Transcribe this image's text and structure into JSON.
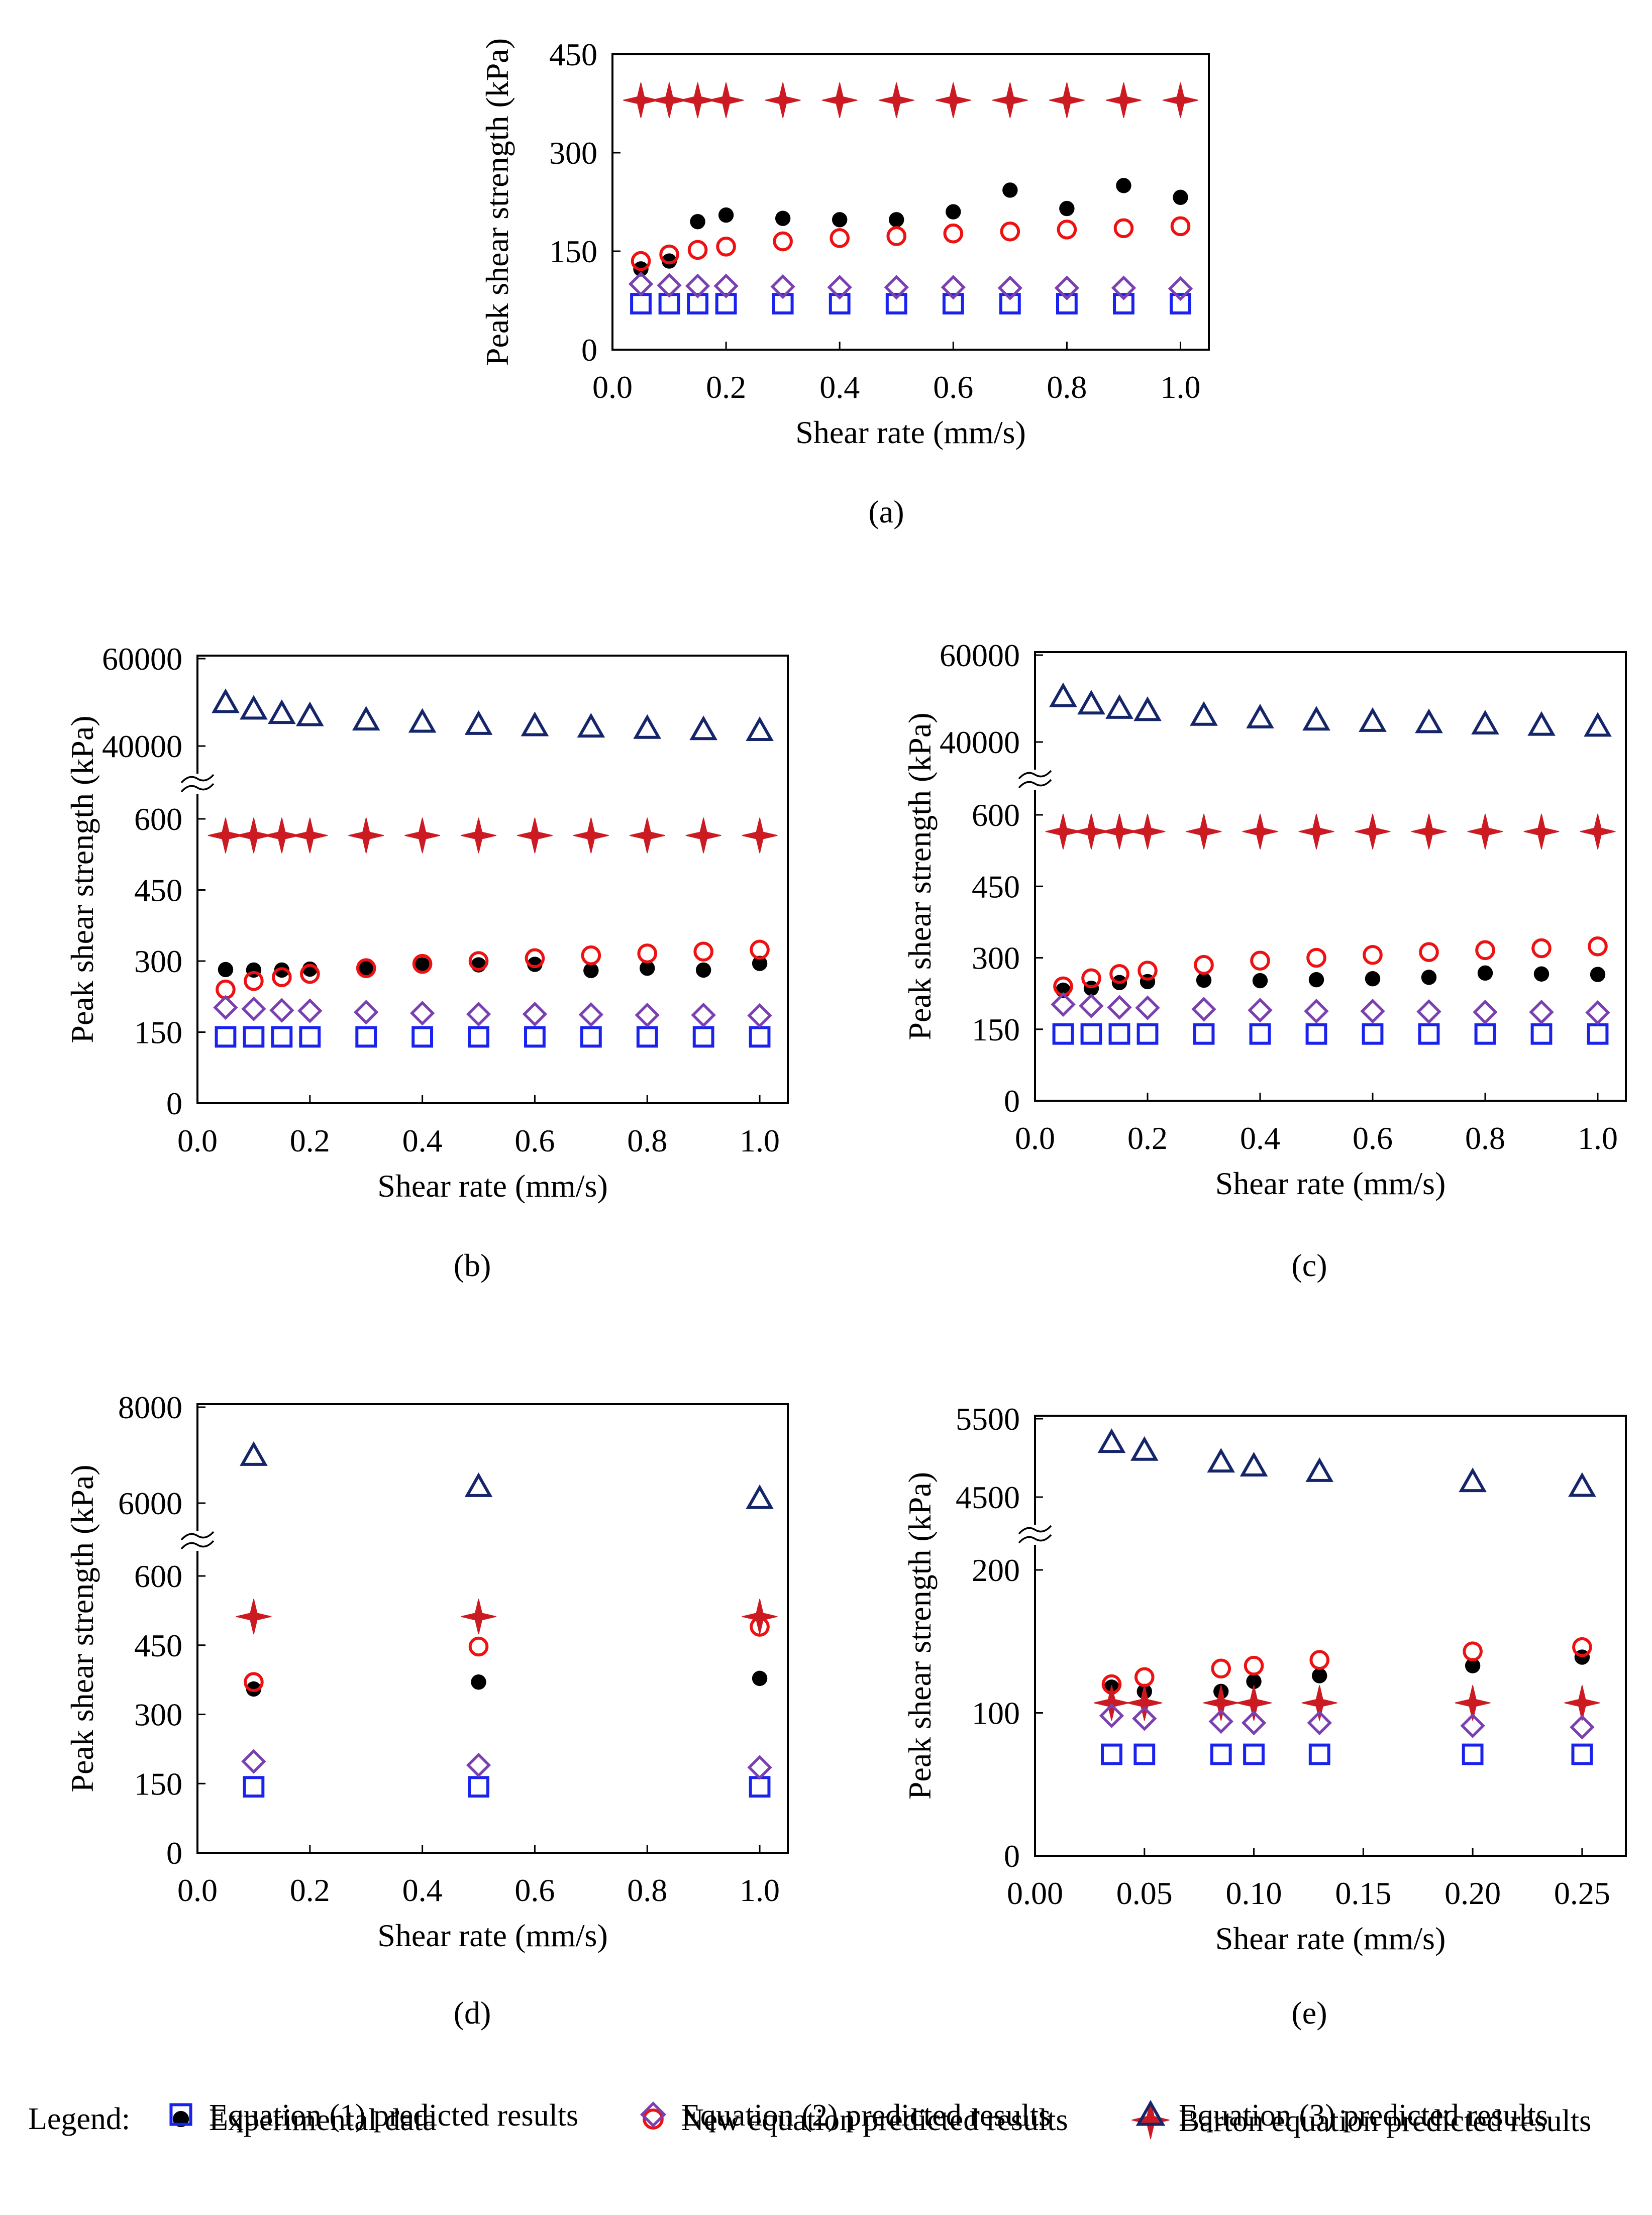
{
  "colors": {
    "experimental": "#000000",
    "new_equation": "#ee1111",
    "barton": "#cc1a22",
    "eq1": "#1a22ee",
    "eq2": "#7a3fb0",
    "eq3": "#15256a"
  },
  "legend": {
    "title": "Legend:",
    "items": [
      {
        "key": "experimental",
        "marker": "filled-circle",
        "label": "Experimental data"
      },
      {
        "key": "new_equation",
        "marker": "open-circle",
        "label": "New equation predicted results"
      },
      {
        "key": "barton",
        "marker": "four-point-star",
        "label": "Barton equation predicted results"
      },
      {
        "key": "eq1",
        "marker": "open-square",
        "label": "Equation (1) predicted results"
      },
      {
        "key": "eq2",
        "marker": "open-diamond",
        "label": "Equation (2) predicted results"
      },
      {
        "key": "eq3",
        "marker": "open-triangle",
        "label": "Equation (3) predicted results"
      }
    ]
  },
  "chart_data": [
    {
      "panel": "(a)",
      "type": "scatter",
      "xlabel": "Shear rate (mm/s)",
      "ylabel": "Peak shear strength (kPa)",
      "xlim": [
        0,
        1.05
      ],
      "xticks": [
        "0.0",
        "0.2",
        "0.4",
        "0.6",
        "0.8",
        "1.0"
      ],
      "xtick_values": [
        0,
        0.2,
        0.4,
        0.6,
        0.8,
        1.0
      ],
      "ylim": [
        0,
        450
      ],
      "yticks": [
        "0",
        "150",
        "300",
        "450"
      ],
      "ytick_values": [
        0,
        150,
        300,
        450
      ],
      "axis_break": false,
      "x": [
        0.05,
        0.1,
        0.15,
        0.2,
        0.3,
        0.4,
        0.5,
        0.6,
        0.7,
        0.8,
        0.9,
        1.0
      ],
      "series": [
        {
          "key": "experimental",
          "name": "Experimental data",
          "values": [
            123,
            135,
            195,
            205,
            200,
            198,
            198,
            210,
            243,
            215,
            250,
            232
          ]
        },
        {
          "key": "new_equation",
          "name": "New equation predicted results",
          "values": [
            135,
            145,
            152,
            157,
            165,
            170,
            173,
            177,
            180,
            183,
            185,
            188
          ]
        },
        {
          "key": "barton",
          "name": "Barton equation predicted results",
          "values": [
            380,
            380,
            380,
            380,
            380,
            380,
            380,
            380,
            380,
            380,
            380,
            380
          ]
        },
        {
          "key": "eq1",
          "name": "Equation (1) predicted results",
          "values": [
            70,
            70,
            70,
            70,
            70,
            70,
            70,
            70,
            70,
            70,
            70,
            70
          ]
        },
        {
          "key": "eq2",
          "name": "Equation (2) predicted results",
          "values": [
            100,
            98,
            97,
            97,
            96,
            95,
            95,
            95,
            94,
            94,
            94,
            93
          ]
        }
      ]
    },
    {
      "panel": "(b)",
      "type": "scatter",
      "xlabel": "Shear rate (mm/s)",
      "ylabel": "Peak shear strength (kPa)",
      "xlim": [
        0,
        1.05
      ],
      "xticks": [
        "0.0",
        "0.2",
        "0.4",
        "0.6",
        "0.8",
        "1.0"
      ],
      "xtick_values": [
        0,
        0.2,
        0.4,
        0.6,
        0.8,
        1.0
      ],
      "ylim": [
        0,
        600
      ],
      "yticks": [
        "0",
        "150",
        "300",
        "450",
        "600"
      ],
      "ytick_values": [
        0,
        150,
        300,
        450,
        600
      ],
      "axis_break": true,
      "upper_ylim": [
        40000,
        60000
      ],
      "upper_yticks": [
        "40000",
        "60000"
      ],
      "upper_ytick_values": [
        40000,
        60000
      ],
      "x": [
        0.05,
        0.1,
        0.15,
        0.2,
        0.3,
        0.4,
        0.5,
        0.6,
        0.7,
        0.8,
        0.9,
        1.0
      ],
      "series": [
        {
          "key": "experimental",
          "name": "Experimental data",
          "values": [
            282,
            281,
            281,
            283,
            285,
            292,
            292,
            293,
            280,
            285,
            281,
            295
          ]
        },
        {
          "key": "new_equation",
          "name": "New equation predicted results",
          "values": [
            240,
            258,
            266,
            273,
            285,
            294,
            300,
            306,
            312,
            316,
            320,
            324
          ]
        },
        {
          "key": "barton",
          "name": "Barton equation predicted results",
          "values": [
            565,
            565,
            565,
            565,
            565,
            565,
            565,
            565,
            565,
            565,
            565,
            565
          ]
        },
        {
          "key": "eq1",
          "name": "Equation (1) predicted results",
          "values": [
            140,
            140,
            140,
            140,
            140,
            140,
            140,
            140,
            140,
            140,
            140,
            140
          ]
        },
        {
          "key": "eq2",
          "name": "Equation (2) predicted results",
          "values": [
            202,
            199,
            196,
            195,
            192,
            190,
            188,
            188,
            187,
            186,
            186,
            185
          ]
        },
        {
          "key": "eq3",
          "name": "Equation (3) predicted results",
          "values": [
            50000,
            48500,
            47500,
            47000,
            46000,
            45500,
            45000,
            44700,
            44400,
            44100,
            43800,
            43600
          ]
        }
      ]
    },
    {
      "panel": "(c)",
      "type": "scatter",
      "xlabel": "Shear rate (mm/s)",
      "ylabel": "Peak shear strength (kPa)",
      "xlim": [
        0,
        1.05
      ],
      "xticks": [
        "0.0",
        "0.2",
        "0.4",
        "0.6",
        "0.8",
        "1.0"
      ],
      "xtick_values": [
        0,
        0.2,
        0.4,
        0.6,
        0.8,
        1.0
      ],
      "ylim": [
        0,
        600
      ],
      "yticks": [
        "0",
        "150",
        "300",
        "450",
        "600"
      ],
      "ytick_values": [
        0,
        150,
        300,
        450,
        600
      ],
      "axis_break": true,
      "upper_ylim": [
        40000,
        60000
      ],
      "upper_yticks": [
        "40000",
        "60000"
      ],
      "upper_ytick_values": [
        40000,
        60000
      ],
      "x": [
        0.05,
        0.1,
        0.15,
        0.2,
        0.3,
        0.4,
        0.5,
        0.6,
        0.7,
        0.8,
        0.9,
        1.0
      ],
      "series": [
        {
          "key": "experimental",
          "name": "Experimental data",
          "values": [
            232,
            236,
            248,
            250,
            253,
            252,
            254,
            256,
            259,
            268,
            266,
            265
          ]
        },
        {
          "key": "new_equation",
          "name": "New equation predicted results",
          "values": [
            240,
            257,
            266,
            273,
            285,
            294,
            300,
            306,
            312,
            316,
            320,
            324
          ]
        },
        {
          "key": "barton",
          "name": "Barton equation predicted results",
          "values": [
            565,
            565,
            565,
            565,
            565,
            565,
            565,
            565,
            565,
            565,
            565,
            565
          ]
        },
        {
          "key": "eq1",
          "name": "Equation (1) predicted results",
          "values": [
            140,
            140,
            140,
            140,
            140,
            140,
            140,
            140,
            140,
            140,
            140,
            140
          ]
        },
        {
          "key": "eq2",
          "name": "Equation (2) predicted results",
          "values": [
            202,
            199,
            196,
            195,
            192,
            190,
            188,
            188,
            187,
            186,
            186,
            185
          ]
        },
        {
          "key": "eq3",
          "name": "Equation (3) predicted results",
          "values": [
            50500,
            48800,
            47800,
            47300,
            46200,
            45600,
            45100,
            44800,
            44500,
            44200,
            43900,
            43700
          ]
        }
      ]
    },
    {
      "panel": "(d)",
      "type": "scatter",
      "xlabel": "Shear rate (mm/s)",
      "ylabel": "Peak shear strength (kPa)",
      "xlim": [
        0,
        1.05
      ],
      "xticks": [
        "0.0",
        "0.2",
        "0.4",
        "0.6",
        "0.8",
        "1.0"
      ],
      "xtick_values": [
        0,
        0.2,
        0.4,
        0.6,
        0.8,
        1.0
      ],
      "ylim": [
        0,
        600
      ],
      "yticks": [
        "0",
        "150",
        "300",
        "450",
        "600"
      ],
      "ytick_values": [
        0,
        150,
        300,
        450,
        600
      ],
      "axis_break": true,
      "upper_ylim": [
        6000,
        8000
      ],
      "upper_yticks": [
        "6000",
        "8000"
      ],
      "upper_ytick_values": [
        6000,
        8000
      ],
      "x": [
        0.1,
        0.5,
        1.0
      ],
      "series": [
        {
          "key": "experimental",
          "name": "Experimental data",
          "values": [
            355,
            370,
            378
          ]
        },
        {
          "key": "new_equation",
          "name": "New equation predicted results",
          "values": [
            370,
            447,
            490
          ]
        },
        {
          "key": "barton",
          "name": "Barton equation predicted results",
          "values": [
            512,
            512,
            512
          ]
        },
        {
          "key": "eq1",
          "name": "Equation (1) predicted results",
          "values": [
            143,
            143,
            143
          ]
        },
        {
          "key": "eq2",
          "name": "Equation (2) predicted results",
          "values": [
            198,
            190,
            185
          ]
        },
        {
          "key": "eq3",
          "name": "Equation (3) predicted results",
          "values": [
            7000,
            6350,
            6100
          ]
        }
      ]
    },
    {
      "panel": "(e)",
      "type": "scatter",
      "xlabel": "Shear rate (mm/s)",
      "ylabel": "Peak shear strength (kPa)",
      "xlim": [
        0,
        0.27
      ],
      "xticks": [
        "0.00",
        "0.05",
        "0.10",
        "0.15",
        "0.20",
        "0.25"
      ],
      "xtick_values": [
        0,
        0.05,
        0.1,
        0.15,
        0.2,
        0.25
      ],
      "ylim": [
        0,
        200
      ],
      "yticks": [
        "0",
        "100",
        "200"
      ],
      "ytick_values": [
        0,
        100,
        200
      ],
      "axis_break": true,
      "upper_ylim": [
        4500,
        5500
      ],
      "upper_yticks": [
        "4500",
        "5500"
      ],
      "upper_ytick_values": [
        4500,
        5500
      ],
      "x": [
        0.035,
        0.05,
        0.085,
        0.1,
        0.13,
        0.2,
        0.25
      ],
      "series": [
        {
          "key": "experimental",
          "name": "Experimental data",
          "values": [
            118,
            115,
            115,
            122,
            126,
            133,
            139
          ]
        },
        {
          "key": "new_equation",
          "name": "New equation predicted results",
          "values": [
            120,
            125,
            131,
            133,
            137,
            143,
            146
          ]
        },
        {
          "key": "barton",
          "name": "Barton equation predicted results",
          "values": [
            107,
            107,
            107,
            107,
            107,
            107,
            107
          ]
        },
        {
          "key": "eq1",
          "name": "Equation (1) predicted results",
          "values": [
            71,
            71,
            71,
            71,
            71,
            71,
            71
          ]
        },
        {
          "key": "eq2",
          "name": "Equation (2) predicted results",
          "values": [
            98,
            96,
            94,
            93,
            93,
            91,
            90
          ]
        },
        {
          "key": "eq3",
          "name": "Equation (3) predicted results",
          "values": [
            5200,
            5100,
            4950,
            4900,
            4830,
            4700,
            4640
          ]
        }
      ]
    }
  ]
}
